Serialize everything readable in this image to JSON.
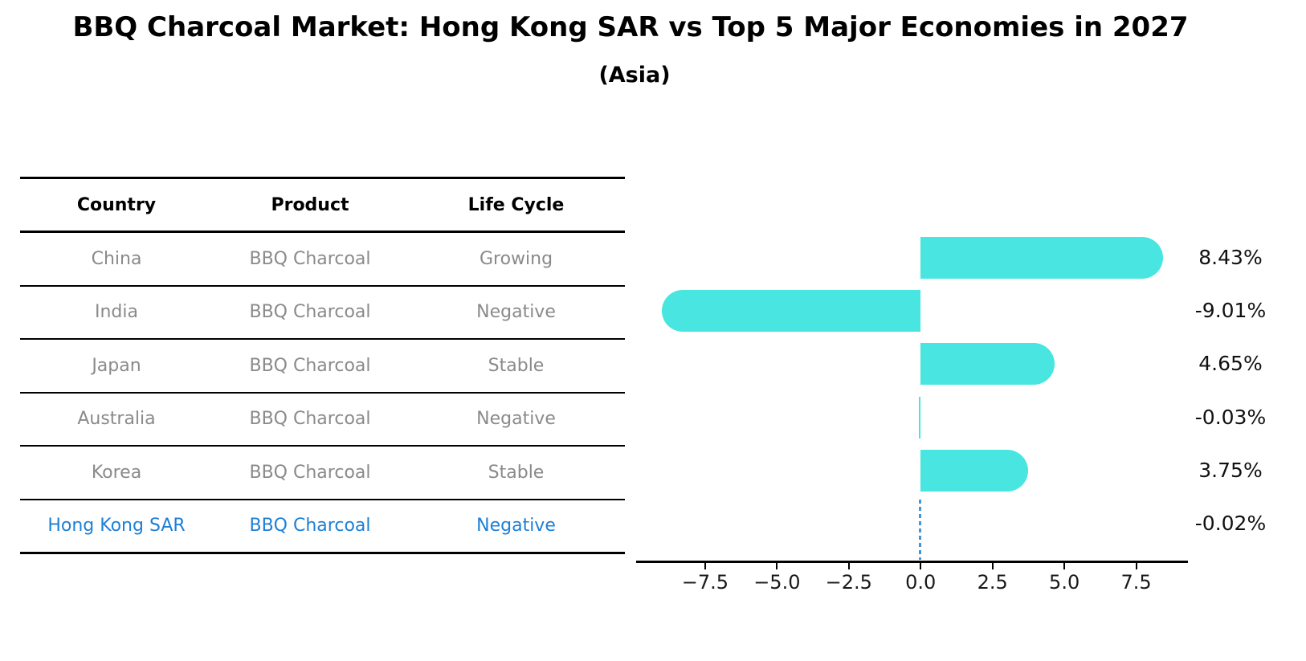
{
  "title": "BBQ Charcoal Market: Hong Kong SAR vs Top 5 Major Economies in 2027",
  "subtitle": "(Asia)",
  "table": {
    "headers": [
      "Country",
      "Product",
      "Life Cycle"
    ],
    "rows": [
      [
        "China",
        "BBQ Charcoal",
        "Growing"
      ],
      [
        "India",
        "BBQ Charcoal",
        "Negative"
      ],
      [
        "Japan",
        "BBQ Charcoal",
        "Stable"
      ],
      [
        "Australia",
        "BBQ Charcoal",
        "Negative"
      ],
      [
        "Korea",
        "BBQ Charcoal",
        "Stable"
      ],
      [
        "Hong Kong SAR",
        "BBQ Charcoal",
        "Negative"
      ]
    ],
    "highlight_row_index": 5
  },
  "chart_data": {
    "type": "bar",
    "orientation": "horizontal",
    "title": "",
    "xlabel": "",
    "ylabel": "",
    "categories": [
      "China",
      "India",
      "Japan",
      "Australia",
      "Korea",
      "Hong Kong SAR"
    ],
    "values": [
      8.43,
      -9.01,
      4.65,
      -0.03,
      3.75,
      -0.02
    ],
    "value_labels": [
      "8.43%",
      "-9.01%",
      "4.65%",
      "-0.03%",
      "3.75%",
      "-0.02%"
    ],
    "xlim": [
      -9.9,
      9.3
    ],
    "xticks": [
      -7.5,
      -5.0,
      -2.5,
      0.0,
      2.5,
      5.0,
      7.5
    ],
    "xtick_labels": [
      "−7.5",
      "−5.0",
      "−2.5",
      "0.0",
      "2.5",
      "5.0",
      "7.5"
    ],
    "grid": false,
    "legend": null,
    "highlight_index": 5,
    "bar_color": "#48E5E1",
    "highlight_dash_color": "#3E97DB"
  },
  "colors": {
    "bar": "#48E5E1",
    "highlight_text": "#1E7FD6",
    "table_text": "#8a8a8a",
    "axis": "#000000"
  }
}
